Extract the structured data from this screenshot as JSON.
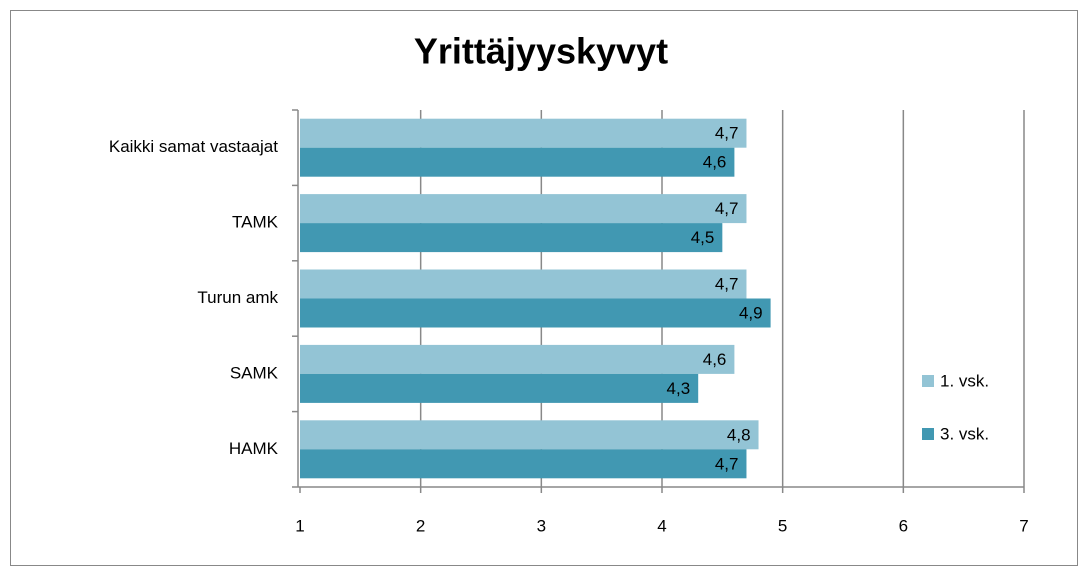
{
  "chart_data": {
    "type": "bar",
    "orientation": "horizontal",
    "title": "Yrittäjyyskyvyt",
    "categories": [
      "Kaikki samat vastaajat",
      "TAMK",
      "Turun amk",
      "SAMK",
      "HAMK"
    ],
    "series": [
      {
        "name": "1. vsk.",
        "color": "#93c4d5",
        "values": [
          4.7,
          4.7,
          4.7,
          4.6,
          4.8
        ],
        "value_labels": [
          "4,7",
          "4,7",
          "4,7",
          "4,6",
          "4,8"
        ]
      },
      {
        "name": "3. vsk.",
        "color": "#4198b2",
        "values": [
          4.6,
          4.5,
          4.9,
          4.3,
          4.7
        ],
        "value_labels": [
          "4,6",
          "4,5",
          "4,9",
          "4,3",
          "4,7"
        ]
      }
    ],
    "xlim": [
      1,
      7
    ],
    "xticks": [
      1,
      2,
      3,
      4,
      5,
      6,
      7
    ],
    "grid": true,
    "legend": "right"
  }
}
